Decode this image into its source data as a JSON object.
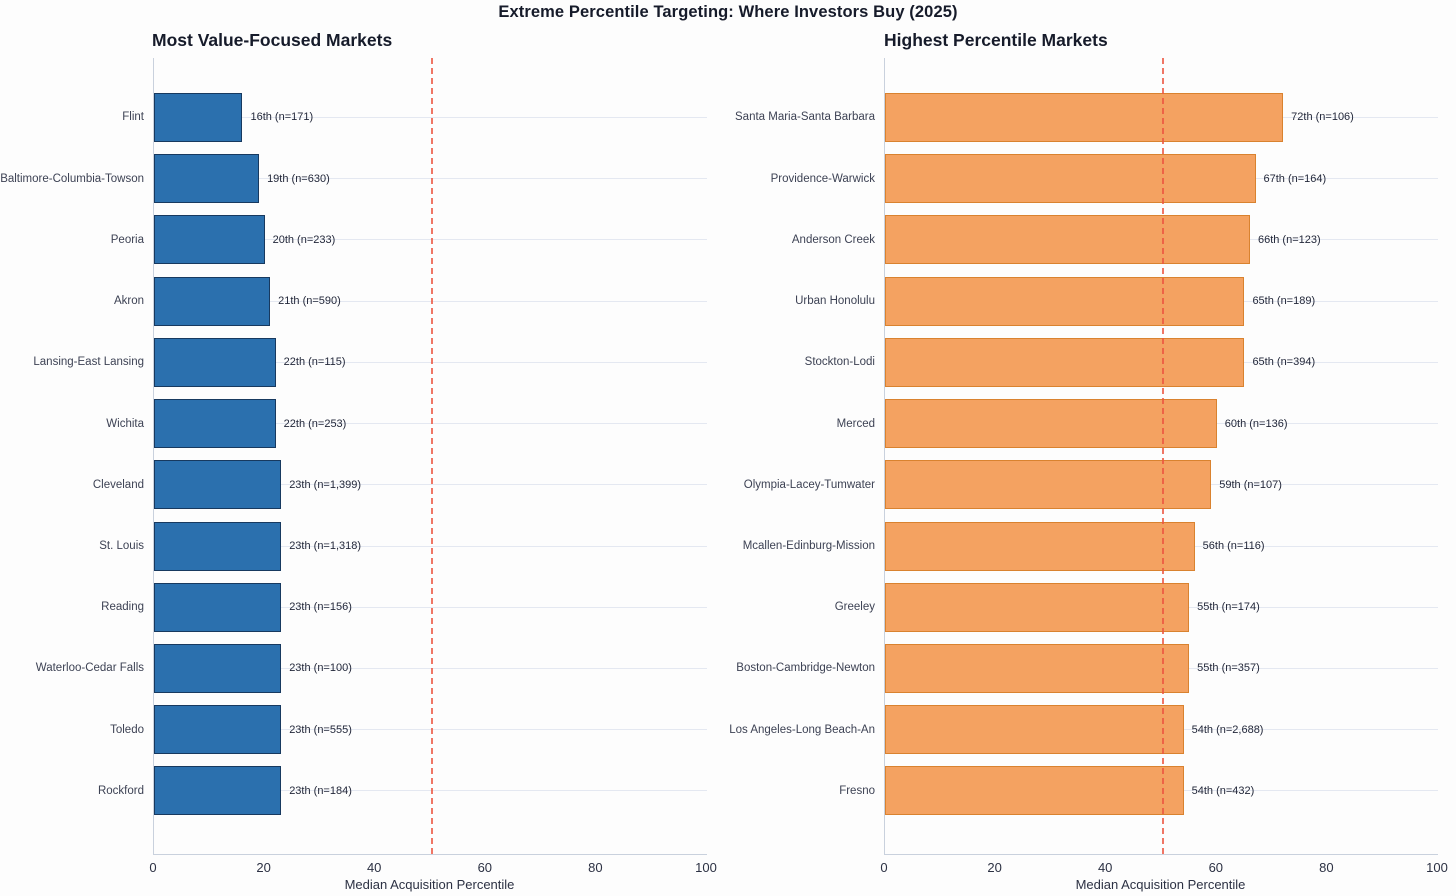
{
  "title": "Extreme Percentile Targeting: Where Investors Buy (2025)",
  "colors": {
    "background": "#fdfdfd",
    "text_dark": "#161b2a",
    "grid": "#e4e8f1",
    "spine": "#c9d1dd",
    "reference_line": "#ec543e",
    "blue_fill": "#2b70ae",
    "blue_edge": "#17395f",
    "orange_fill": "#f4a261",
    "orange_edge": "#d9822f"
  },
  "chart_data": [
    {
      "type": "bar",
      "orientation": "horizontal",
      "title": "Most Value-Focused Markets",
      "xlabel": "Median Acquisition Percentile",
      "xlim": [
        0,
        100
      ],
      "xticks": [
        0,
        20,
        40,
        60,
        80,
        100
      ],
      "grid": "horizontal",
      "reference_line": {
        "x": 50,
        "style": "dashed",
        "color": "#ec543e"
      },
      "bar_color": "#2b70ae",
      "bar_edge_color": "#17395f",
      "categories": [
        "Flint",
        "Baltimore-Columbia-Towson",
        "Peoria",
        "Akron",
        "Lansing-East Lansing",
        "Wichita",
        "Cleveland",
        "St. Louis",
        "Reading",
        "Waterloo-Cedar Falls",
        "Toledo",
        "Rockford"
      ],
      "values": [
        16,
        19,
        20,
        21,
        22,
        22,
        23,
        23,
        23,
        23,
        23,
        23
      ],
      "bar_labels": [
        "16th (n=171)",
        "19th (n=630)",
        "20th (n=233)",
        "21th (n=590)",
        "22th (n=115)",
        "22th (n=253)",
        "23th (n=1,399)",
        "23th (n=1,318)",
        "23th (n=156)",
        "23th (n=100)",
        "23th (n=555)",
        "23th (n=184)"
      ]
    },
    {
      "type": "bar",
      "orientation": "horizontal",
      "title": "Highest Percentile Markets",
      "xlabel": "Median Acquisition Percentile",
      "xlim": [
        0,
        100
      ],
      "xticks": [
        0,
        20,
        40,
        60,
        80,
        100
      ],
      "grid": "horizontal",
      "reference_line": {
        "x": 50,
        "style": "dashed",
        "color": "#ec543e"
      },
      "bar_color": "#f4a261",
      "bar_edge_color": "#d9822f",
      "categories": [
        "Santa Maria-Santa Barbara",
        "Providence-Warwick",
        "Anderson Creek",
        "Urban Honolulu",
        "Stockton-Lodi",
        "Merced",
        "Olympia-Lacey-Tumwater",
        "Mcallen-Edinburg-Mission",
        "Greeley",
        "Boston-Cambridge-Newton",
        "Los Angeles-Long Beach-An",
        "Fresno"
      ],
      "values": [
        72,
        67,
        66,
        65,
        65,
        60,
        59,
        56,
        55,
        55,
        54,
        54
      ],
      "bar_labels": [
        "72th (n=106)",
        "67th (n=164)",
        "66th (n=123)",
        "65th (n=189)",
        "65th (n=394)",
        "60th (n=136)",
        "59th (n=107)",
        "56th (n=116)",
        "55th (n=174)",
        "55th (n=357)",
        "54th (n=2,688)",
        "54th (n=432)"
      ]
    }
  ]
}
